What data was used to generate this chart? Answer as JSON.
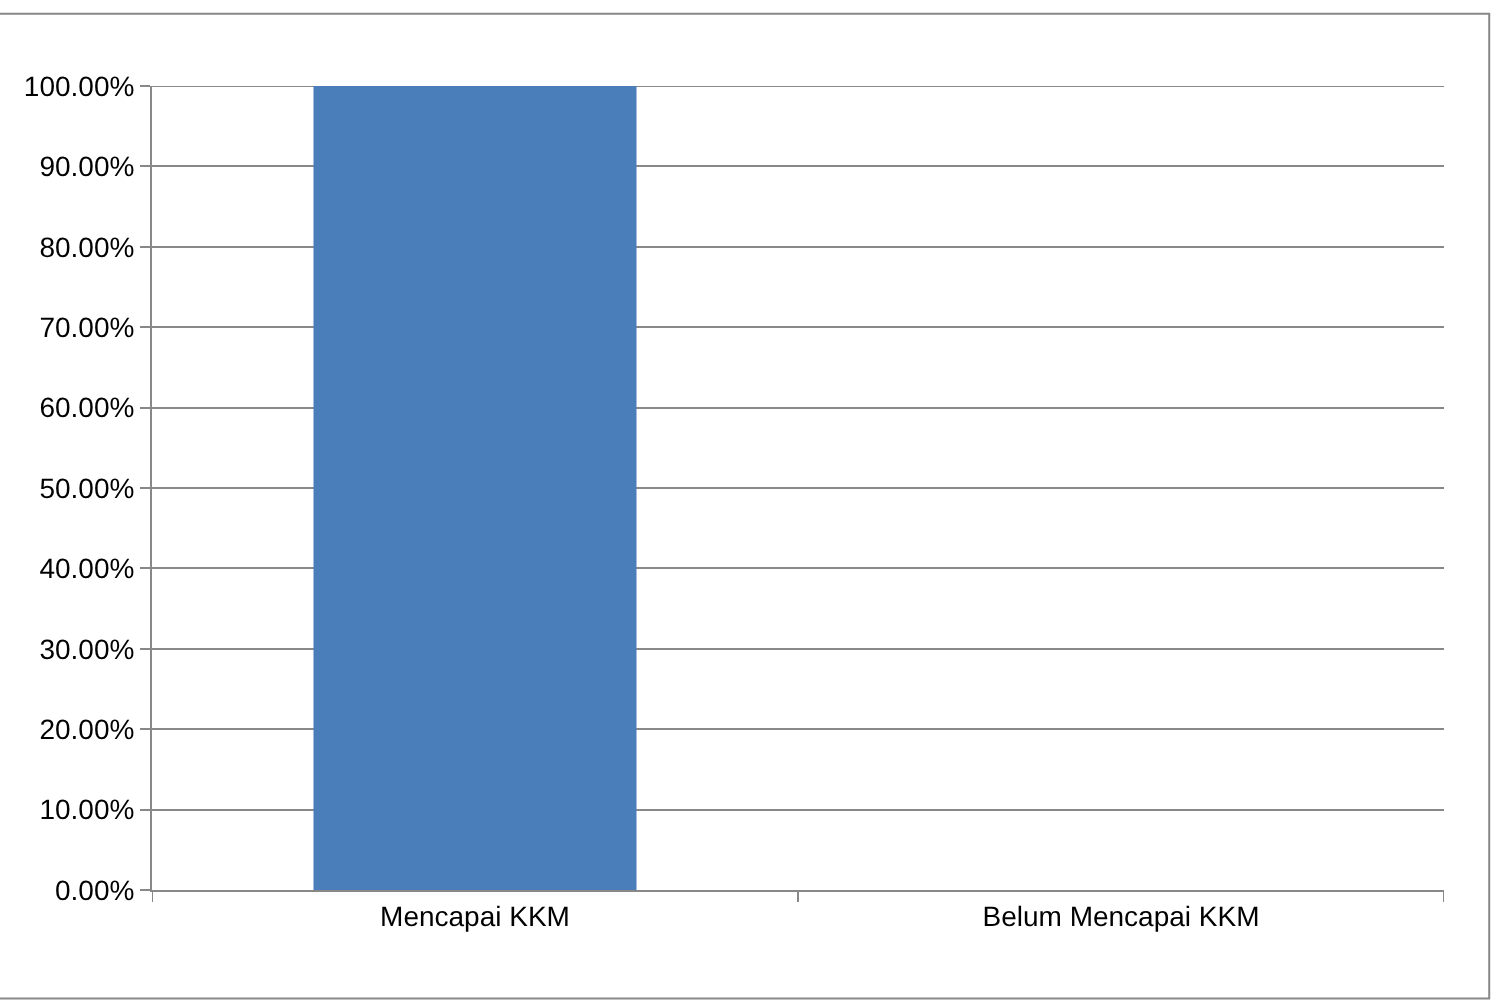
{
  "chart_data": {
    "type": "bar",
    "categories": [
      "Mencapai KKM",
      "Belum Mencapai KKM"
    ],
    "values": [
      100,
      0
    ],
    "color": "#4a7ebb",
    "ylim": [
      0,
      100
    ],
    "yticks": [
      {
        "value": 0,
        "label": "0.00%"
      },
      {
        "value": 10,
        "label": "10.00%"
      },
      {
        "value": 20,
        "label": "20.00%"
      },
      {
        "value": 30,
        "label": "30.00%"
      },
      {
        "value": 40,
        "label": "40.00%"
      },
      {
        "value": 50,
        "label": "50.00%"
      },
      {
        "value": 60,
        "label": "60.00%"
      },
      {
        "value": 70,
        "label": "70.00%"
      },
      {
        "value": 80,
        "label": "80.00%"
      },
      {
        "value": 90,
        "label": "90.00%"
      },
      {
        "value": 100,
        "label": "100.00%"
      }
    ],
    "grid": "y"
  }
}
